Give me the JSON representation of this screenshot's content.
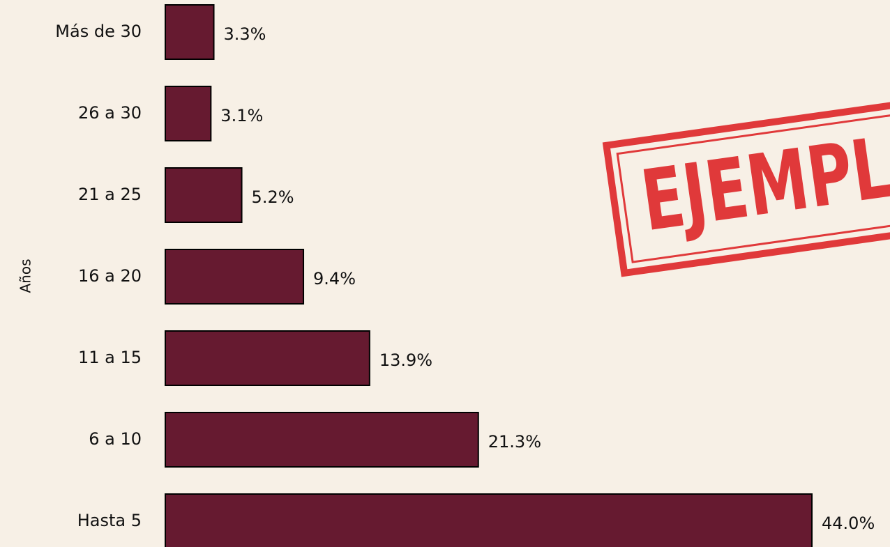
{
  "chart_data": {
    "type": "barh",
    "ylabel": "Años",
    "categories": [
      "Más de 30",
      "26 a 30",
      "21 a 25",
      "16 a 20",
      "11 a 15",
      "6 a 10",
      "Hasta 5"
    ],
    "values": [
      3.3,
      3.1,
      5.2,
      9.4,
      13.9,
      21.3,
      44.0
    ],
    "value_labels": [
      "3.3%",
      "3.1%",
      "5.2%",
      "9.4%",
      "13.9%",
      "21.3%",
      "44.0%"
    ],
    "color": "#661a30",
    "watermark": "EJEMPLO"
  }
}
